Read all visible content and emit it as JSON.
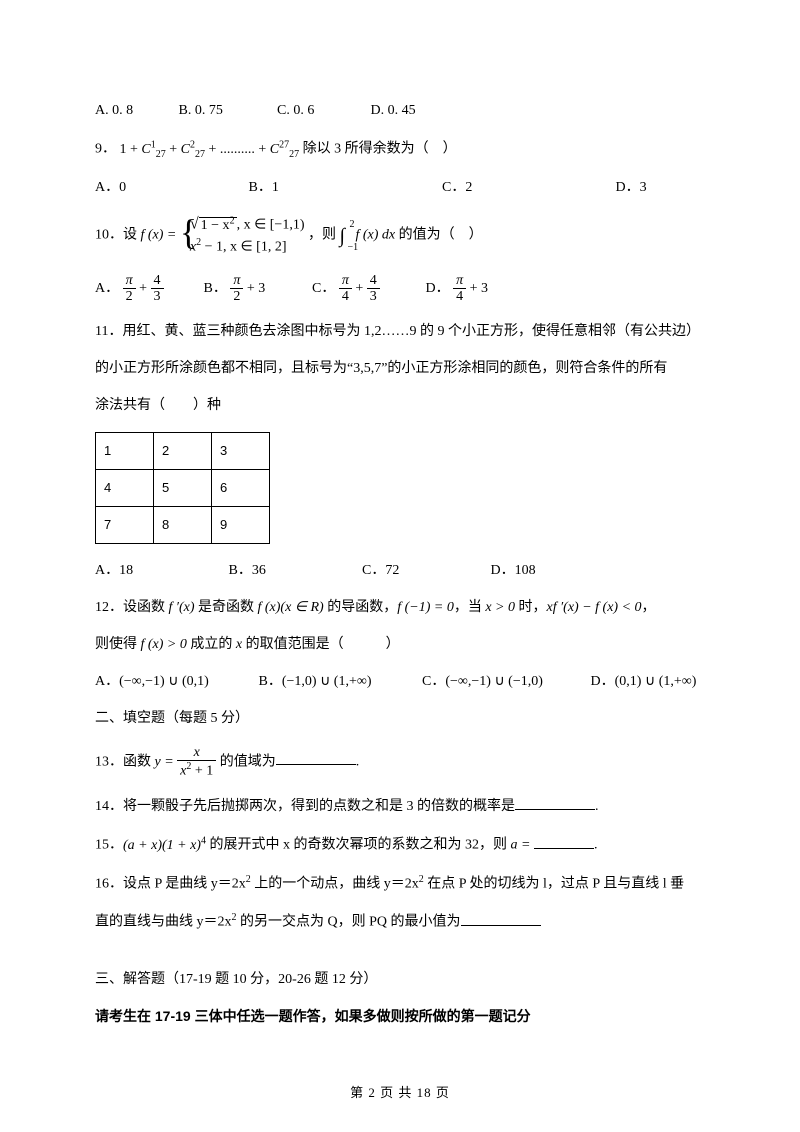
{
  "colors": {
    "text": "#000000",
    "bg": "#ffffff",
    "border": "#000000"
  },
  "typography": {
    "body_fontsize_pt": 10.5,
    "math_family": "Times New Roman",
    "cjk_family": "SimSun"
  },
  "q8": {
    "opts": {
      "a": "A. 0. 8",
      "b": "B. 0. 75",
      "c": "C. 0. 6",
      "d": "D. 0. 45"
    },
    "widths": [
      "80px",
      "95px",
      "90px",
      "80px"
    ]
  },
  "q9": {
    "label": "9．",
    "expr_pre": "1 + ",
    "c_base": "C",
    "c_sub": "27",
    "terms_sup": [
      "1",
      "2",
      "27"
    ],
    "dots": " + .......... + ",
    "tail": " 除以 3 所得余数为（　）",
    "plus": " + ",
    "opts": {
      "a": "A．0",
      "b": "B．1",
      "c": "C．2",
      "d": "D．3"
    },
    "widths": [
      "150px",
      "190px",
      "170px",
      "60px"
    ]
  },
  "q10": {
    "label": "10．设 ",
    "fx": "f (x) = ",
    "piece1_rad": "1 − x",
    "piece1_sup": "2",
    "piece1_cond": ", x ∈ [−1,1)",
    "piece2_a": "x",
    "piece2_sup": "2",
    "piece2_b": " − 1, x ∈ [1, 2]",
    "mid": "，则 ",
    "int_top": "2",
    "int_bot": "−1",
    "int_body": "f (x) dx",
    "tail": " 的值为（　）",
    "optA": "A．",
    "optB": "B．",
    "optC": "C．",
    "optD": "D．",
    "fracs": {
      "a": {
        "t1n": "π",
        "t1d": "2",
        "t2n": "4",
        "t2d": "3"
      },
      "b": {
        "t1n": "π",
        "t1d": "2",
        "plus": " + 3"
      },
      "c": {
        "t1n": "π",
        "t1d": "4",
        "t2n": "4",
        "t2d": "3"
      },
      "d": {
        "t1n": "π",
        "t1d": "4",
        "plus": " + 3"
      }
    },
    "plus": " + ",
    "widths": [
      "105px",
      "105px",
      "110px",
      "90px"
    ]
  },
  "q11": {
    "label": "11．",
    "l1": "用红、黄、蓝三种颜色去涂图中标号为 1,2……9 的 9 个小正方形，使得任意相邻（有公共边）",
    "l2": "的小正方形所涂颜色都不相同，且标号为“3,5,7”的小正方形涂相同的颜色，则符合条件的所有",
    "l3": "涂法共有（　　）种",
    "grid": [
      [
        "1",
        "2",
        "3"
      ],
      [
        "4",
        "5",
        "6"
      ],
      [
        "7",
        "8",
        "9"
      ]
    ],
    "opts": {
      "a": "A．18",
      "b": "B．36",
      "c": "C．72",
      "d": "D．108"
    },
    "widths": [
      "130px",
      "130px",
      "125px",
      "80px"
    ]
  },
  "q12": {
    "label": "12．",
    "l1a": "设函数 ",
    "fp": "f ′(x)",
    "l1b": " 是奇函数 ",
    "fx": "f (x)(x ∈ R)",
    "l1c": " 的导函数，",
    "fneg1": "f (−1) = 0",
    "l1d": "，当 ",
    "xgt0": "x > 0",
    "l1e": " 时，",
    "ineq": "xf ′(x) − f (x) < 0",
    "l1f": "，",
    "l2a": "则使得 ",
    "fxgt0": "f (x) > 0",
    "l2b": " 成立的 ",
    "xvar": "x",
    "l2c": " 的取值范围是（　　　）",
    "opts": {
      "a_pre": "A．",
      "a": "(−∞,−1) ∪ (0,1)",
      "b_pre": "B．",
      "b": "(−1,0) ∪ (1,+∞)",
      "c_pre": "C．",
      "c": "(−∞,−1) ∪ (−1,0)",
      "d_pre": "D．",
      "d": "(0,1) ∪ (1,+∞)"
    },
    "widths": [
      "160px",
      "160px",
      "165px",
      "130px"
    ]
  },
  "sec2": "二、填空题（每题 5 分）",
  "q13": {
    "label": "13．",
    "pre": "函数 ",
    "yvar": "y = ",
    "num": "x",
    "den_a": "x",
    "den_sup": "2",
    "den_b": " + 1",
    "post": " 的值域为",
    "dot": "."
  },
  "q14": {
    "label": "14．",
    "text": "将一颗骰子先后抛掷两次，得到的点数之和是 3 的倍数的概率是",
    "dot": "."
  },
  "q15": {
    "label": "15．",
    "expr_a": "(a + x)(1 + x)",
    "expr_sup": "4",
    "text": " 的展开式中 x 的奇数次幂项的系数之和为 32，则 ",
    "avar": "a = ",
    "dot": "."
  },
  "q16": {
    "label": "16．",
    "l1a": "设点 P 是曲线 y＝2x",
    "sup": "2",
    "l1b": " 上的一个动点，曲线 y＝2x",
    "l1c": " 在点 P 处的切线为 l，过点 P 且与直线 l 垂",
    "l2a": "直的直线与曲线 y＝2x",
    "l2b": " 的另一交点为 Q，则 PQ 的最小值为"
  },
  "sec3": "三、解答题（17-19 题 10 分，20-26 题 12 分）",
  "sec3_note": "请考生在 17-19 三体中任选一题作答，如果多做则按所做的第一题记分",
  "footer": {
    "pre": "第 ",
    "cur": "2",
    "mid": " 页 共 ",
    "total": "18",
    "post": " 页"
  }
}
